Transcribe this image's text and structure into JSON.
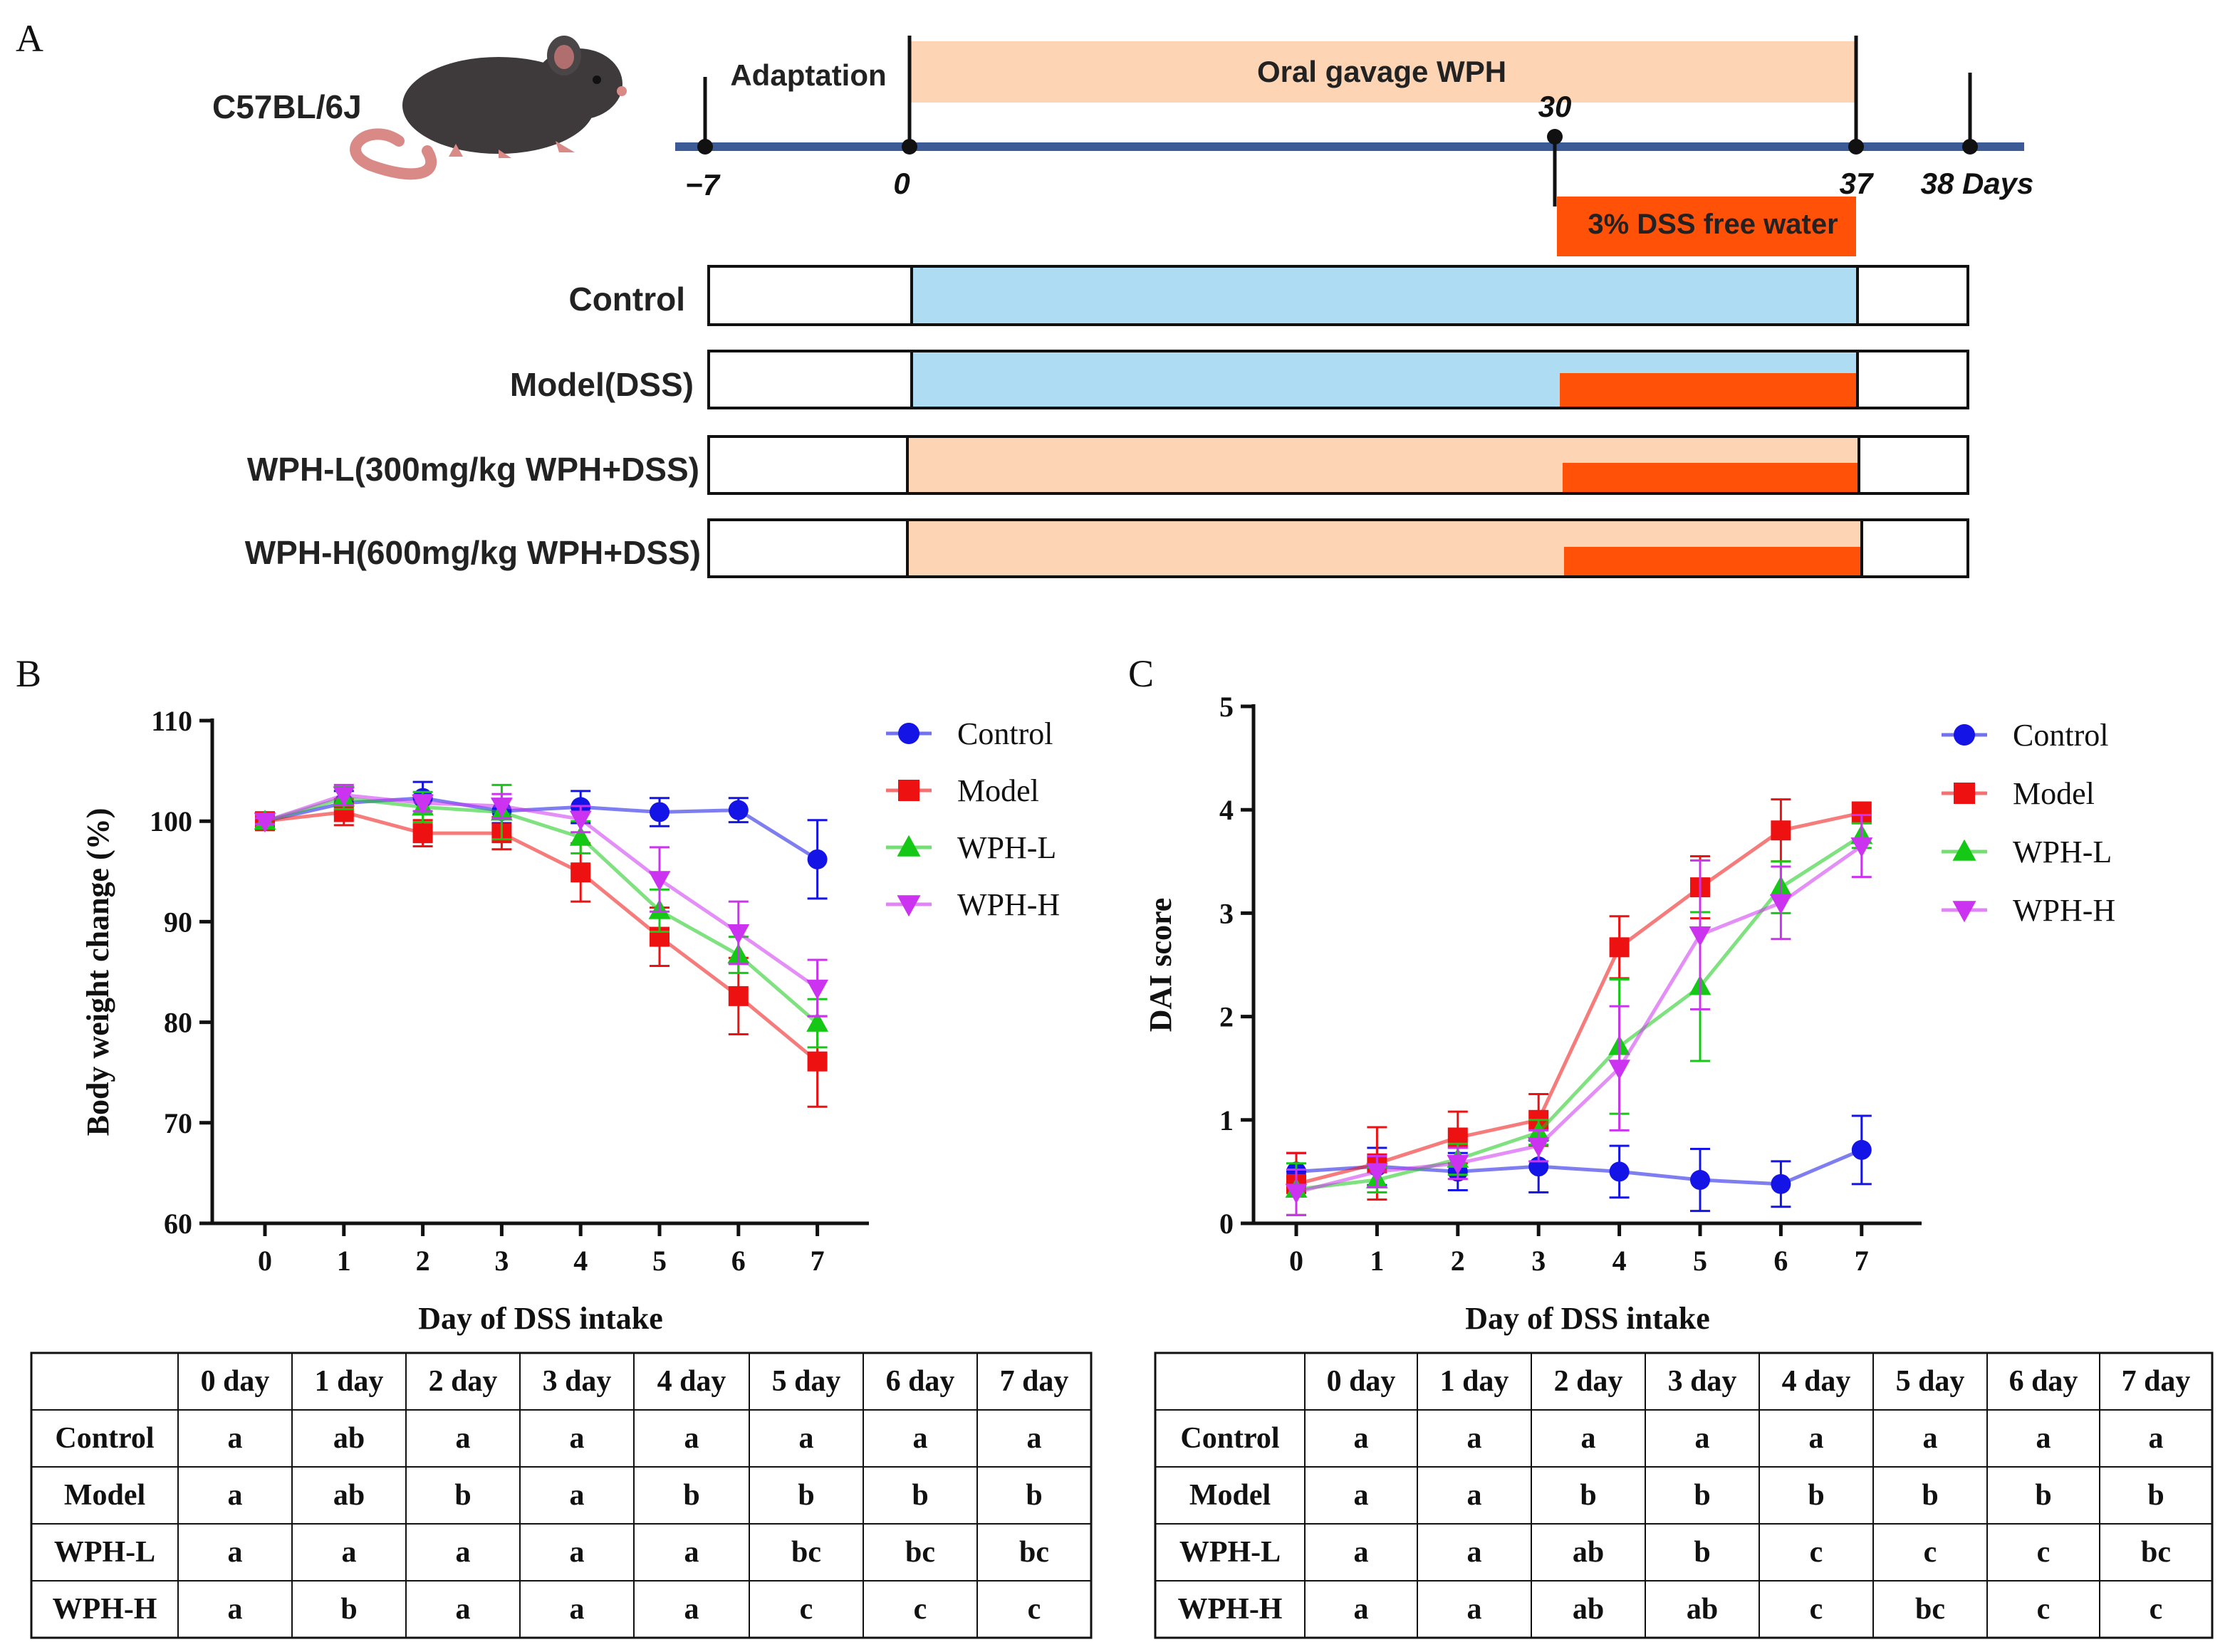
{
  "panel_a": {
    "label": "A",
    "strain": "C57BL/6J",
    "adaptation": "Adaptation",
    "gavage": "Oral gavage WPH",
    "dss_label": "3% DSS free water",
    "ticks": [
      "−7",
      "0",
      "30",
      "37",
      "38 Days"
    ],
    "groups": [
      "Control",
      "Model(DSS)",
      "WPH-L(300mg/kg WPH+DSS)",
      "WPH-H(600mg/kg WPH+DSS)"
    ],
    "colors": {
      "timeline": "#3b5a96",
      "gavage": "#fdd4b4",
      "dss": "#ff5208",
      "water": "#aedcf2"
    }
  },
  "chart_data": [
    {
      "type": "line",
      "panel": "B",
      "xlabel": "Day of DSS intake",
      "ylabel": "Body weight change (%)",
      "ylim": [
        60,
        110
      ],
      "yticks": [
        "60",
        "70",
        "80",
        "90",
        "100",
        "110"
      ],
      "categories": [
        "0",
        "1",
        "2",
        "3",
        "4",
        "5",
        "6",
        "7"
      ],
      "legend": "top-right",
      "series": [
        {
          "name": "Control",
          "color": "#1414e6",
          "marker": "circle",
          "values": [
            100,
            101.8,
            102.3,
            101,
            101.4,
            100.9,
            101.1,
            96.2
          ],
          "errors": [
            0.3,
            1.2,
            1.6,
            1.2,
            1.6,
            1.4,
            1.2,
            3.9
          ]
        },
        {
          "name": "Model",
          "color": "#ee1111",
          "marker": "square",
          "values": [
            100,
            100.9,
            98.8,
            98.8,
            94.9,
            88.5,
            82.6,
            76.1
          ],
          "errors": [
            0.3,
            1.3,
            1.3,
            1.6,
            2.9,
            2.9,
            3.8,
            4.5
          ]
        },
        {
          "name": "WPH-L",
          "color": "#16c816",
          "marker": "triangle",
          "values": [
            100,
            102.3,
            101.4,
            100.9,
            98.4,
            91.1,
            86.7,
            79.9
          ],
          "errors": [
            0.3,
            1.1,
            1.5,
            2.7,
            1.6,
            2.1,
            1.8,
            2.4
          ]
        },
        {
          "name": "WPH-H",
          "color": "#cc33f0",
          "marker": "triangle-down",
          "values": [
            100,
            102.6,
            101.8,
            101.5,
            100.2,
            94.2,
            88.9,
            83.4
          ],
          "errors": [
            0.3,
            1.0,
            0.8,
            1.2,
            1.3,
            3.2,
            3.1,
            2.8
          ]
        }
      ],
      "significance": {
        "headers": [
          "0 day",
          "1 day",
          "2 day",
          "3 day",
          "4 day",
          "5 day",
          "6 day",
          "7 day"
        ],
        "rows": [
          {
            "group": "Control",
            "cells": [
              "a",
              "ab",
              "a",
              "a",
              "a",
              "a",
              "a",
              "a"
            ]
          },
          {
            "group": "Model",
            "cells": [
              "a",
              "ab",
              "b",
              "a",
              "b",
              "b",
              "b",
              "b"
            ]
          },
          {
            "group": "WPH-L",
            "cells": [
              "a",
              "a",
              "a",
              "a",
              "a",
              "bc",
              "bc",
              "bc"
            ]
          },
          {
            "group": "WPH-H",
            "cells": [
              "a",
              "b",
              "a",
              "a",
              "a",
              "c",
              "c",
              "c"
            ]
          }
        ]
      }
    },
    {
      "type": "line",
      "panel": "C",
      "xlabel": "Day of DSS intake",
      "ylabel": "DAI score",
      "ylim": [
        0,
        5
      ],
      "yticks": [
        "0",
        "1",
        "2",
        "3",
        "4",
        "5"
      ],
      "categories": [
        "0",
        "1",
        "2",
        "3",
        "4",
        "5",
        "6",
        "7"
      ],
      "legend": "top-right",
      "series": [
        {
          "name": "Control",
          "color": "#1414e6",
          "marker": "circle",
          "values": [
            0.5,
            0.55,
            0.5,
            0.55,
            0.5,
            0.42,
            0.38,
            0.71
          ],
          "errors": [
            0.18,
            0.18,
            0.18,
            0.25,
            0.25,
            0.3,
            0.22,
            0.33
          ]
        },
        {
          "name": "Model",
          "color": "#ee1111",
          "marker": "square",
          "values": [
            0.38,
            0.58,
            0.83,
            1.0,
            2.67,
            3.25,
            3.8,
            3.97
          ],
          "errors": [
            0.3,
            0.35,
            0.25,
            0.25,
            0.3,
            0.3,
            0.3,
            0.1
          ]
        },
        {
          "name": "WPH-L",
          "color": "#16c816",
          "marker": "triangle",
          "values": [
            0.33,
            0.42,
            0.62,
            0.88,
            1.71,
            2.29,
            3.25,
            3.75
          ],
          "errors": [
            0.25,
            0.12,
            0.15,
            0.12,
            0.65,
            0.72,
            0.25,
            0.12
          ]
        },
        {
          "name": "WPH-H",
          "color": "#cc33f0",
          "marker": "triangle-down",
          "values": [
            0.3,
            0.5,
            0.58,
            0.75,
            1.5,
            2.79,
            3.1,
            3.65
          ],
          "errors": [
            0.22,
            0.15,
            0.15,
            0.15,
            0.6,
            0.72,
            0.35,
            0.3
          ]
        }
      ],
      "significance": {
        "headers": [
          "0 day",
          "1 day",
          "2 day",
          "3 day",
          "4 day",
          "5 day",
          "6 day",
          "7 day"
        ],
        "rows": [
          {
            "group": "Control",
            "cells": [
              "a",
              "a",
              "a",
              "a",
              "a",
              "a",
              "a",
              "a"
            ]
          },
          {
            "group": "Model",
            "cells": [
              "a",
              "a",
              "b",
              "b",
              "b",
              "b",
              "b",
              "b"
            ]
          },
          {
            "group": "WPH-L",
            "cells": [
              "a",
              "a",
              "ab",
              "b",
              "c",
              "c",
              "c",
              "bc"
            ]
          },
          {
            "group": "WPH-H",
            "cells": [
              "a",
              "a",
              "ab",
              "ab",
              "c",
              "bc",
              "c",
              "c"
            ]
          }
        ]
      }
    }
  ],
  "panel_labels": {
    "b": "B",
    "c": "C"
  }
}
